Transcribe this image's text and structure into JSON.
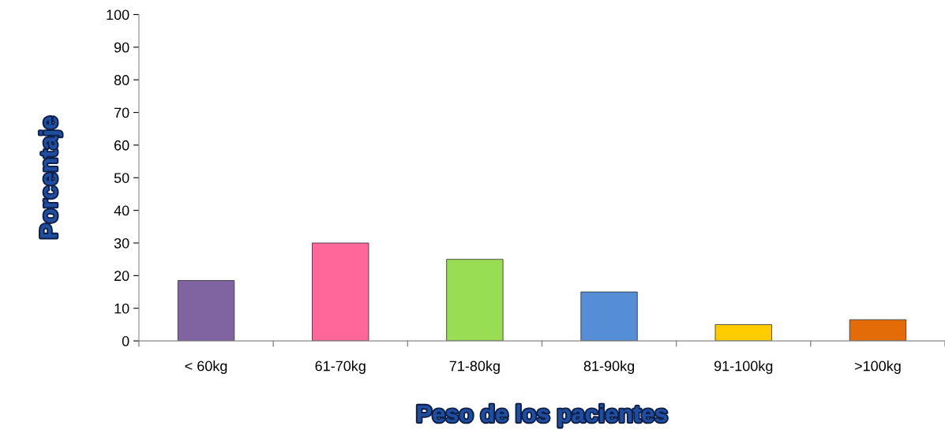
{
  "chart_data": {
    "type": "bar",
    "categories": [
      "< 60kg",
      "61-70kg",
      "71-80kg",
      "81-90kg",
      "91-100kg",
      ">100kg"
    ],
    "values": [
      18.5,
      30,
      25,
      15,
      5,
      6.5
    ],
    "colors": [
      "#8064a2",
      "#ff6699",
      "#99dd55",
      "#558ed5",
      "#ffcc00",
      "#e36c09"
    ],
    "xlabel": "Peso de los pacientes",
    "ylabel": "Porcentaje",
    "ylim": [
      0,
      100
    ],
    "yticks": [
      0,
      10,
      20,
      30,
      40,
      50,
      60,
      70,
      80,
      90,
      100
    ],
    "grid": false,
    "legend": false
  }
}
